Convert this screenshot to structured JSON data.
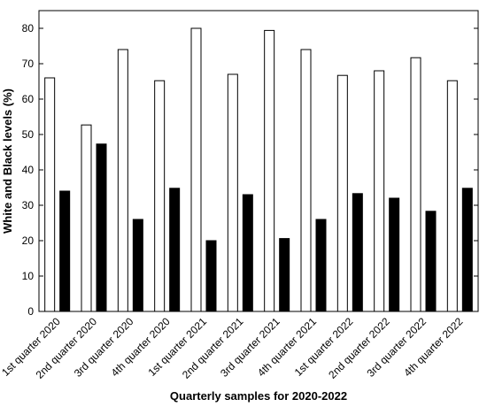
{
  "chart_data": {
    "type": "bar",
    "title": "",
    "xlabel": "Quarterly samples for 2020-2022",
    "ylabel": "White and Black levels (%)",
    "ylim": [
      0,
      85
    ],
    "yticks": [
      0,
      10,
      20,
      30,
      40,
      50,
      60,
      70,
      80
    ],
    "grid": false,
    "legend": "none",
    "categories": [
      "1st quarter 2020",
      "2nd quarter 2020",
      "3rd quarter 2020",
      "4th quarter 2020",
      "1st quarter 2021",
      "2nd quarter 2021",
      "3rd quarter 2021",
      "4th quarter 2021",
      "1st quarter 2022",
      "2nd quarter 2022",
      "3rd quarter 2022",
      "4th quarter 2022"
    ],
    "series": [
      {
        "color": "#ffffff",
        "values": [
          66,
          52.7,
          74,
          65.2,
          80,
          67,
          79.4,
          74,
          66.7,
          68,
          71.7,
          65.2
        ]
      },
      {
        "color": "#000000",
        "values": [
          34,
          47.3,
          26,
          34.8,
          20,
          33,
          20.6,
          26,
          33.3,
          32,
          28.3,
          34.8
        ]
      }
    ]
  }
}
